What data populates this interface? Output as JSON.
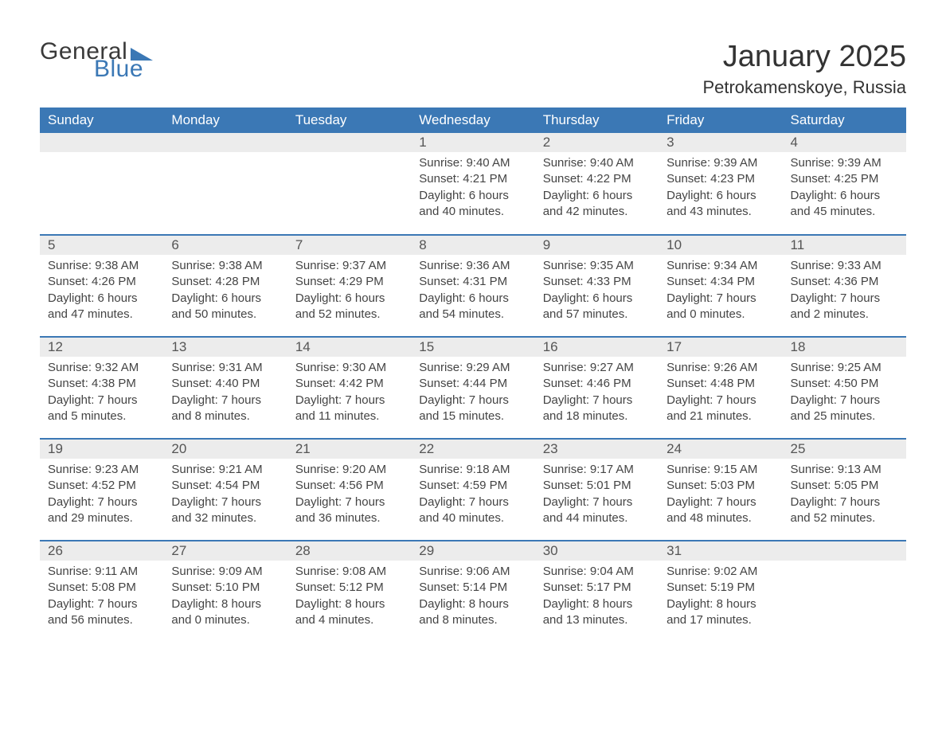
{
  "logo": {
    "text1": "General",
    "text2": "Blue",
    "triangle_color": "#3b78b5"
  },
  "title": "January 2025",
  "location": "Petrokamenskoye, Russia",
  "colors": {
    "header_bg": "#3b78b5",
    "header_text": "#ffffff",
    "daynum_bg": "#ECECEC",
    "body_text": "#444444",
    "rule": "#3b78b5",
    "page_bg": "#ffffff"
  },
  "typography": {
    "month_title_fontsize": 38,
    "location_fontsize": 22,
    "header_fontsize": 17,
    "daynum_fontsize": 17,
    "body_fontsize": 15
  },
  "days_of_week": [
    "Sunday",
    "Monday",
    "Tuesday",
    "Wednesday",
    "Thursday",
    "Friday",
    "Saturday"
  ],
  "weeks": [
    [
      null,
      null,
      null,
      {
        "n": "1",
        "sunrise": "9:40 AM",
        "sunset": "4:21 PM",
        "dl1": "Daylight: 6 hours",
        "dl2": "and 40 minutes."
      },
      {
        "n": "2",
        "sunrise": "9:40 AM",
        "sunset": "4:22 PM",
        "dl1": "Daylight: 6 hours",
        "dl2": "and 42 minutes."
      },
      {
        "n": "3",
        "sunrise": "9:39 AM",
        "sunset": "4:23 PM",
        "dl1": "Daylight: 6 hours",
        "dl2": "and 43 minutes."
      },
      {
        "n": "4",
        "sunrise": "9:39 AM",
        "sunset": "4:25 PM",
        "dl1": "Daylight: 6 hours",
        "dl2": "and 45 minutes."
      }
    ],
    [
      {
        "n": "5",
        "sunrise": "9:38 AM",
        "sunset": "4:26 PM",
        "dl1": "Daylight: 6 hours",
        "dl2": "and 47 minutes."
      },
      {
        "n": "6",
        "sunrise": "9:38 AM",
        "sunset": "4:28 PM",
        "dl1": "Daylight: 6 hours",
        "dl2": "and 50 minutes."
      },
      {
        "n": "7",
        "sunrise": "9:37 AM",
        "sunset": "4:29 PM",
        "dl1": "Daylight: 6 hours",
        "dl2": "and 52 minutes."
      },
      {
        "n": "8",
        "sunrise": "9:36 AM",
        "sunset": "4:31 PM",
        "dl1": "Daylight: 6 hours",
        "dl2": "and 54 minutes."
      },
      {
        "n": "9",
        "sunrise": "9:35 AM",
        "sunset": "4:33 PM",
        "dl1": "Daylight: 6 hours",
        "dl2": "and 57 minutes."
      },
      {
        "n": "10",
        "sunrise": "9:34 AM",
        "sunset": "4:34 PM",
        "dl1": "Daylight: 7 hours",
        "dl2": "and 0 minutes."
      },
      {
        "n": "11",
        "sunrise": "9:33 AM",
        "sunset": "4:36 PM",
        "dl1": "Daylight: 7 hours",
        "dl2": "and 2 minutes."
      }
    ],
    [
      {
        "n": "12",
        "sunrise": "9:32 AM",
        "sunset": "4:38 PM",
        "dl1": "Daylight: 7 hours",
        "dl2": "and 5 minutes."
      },
      {
        "n": "13",
        "sunrise": "9:31 AM",
        "sunset": "4:40 PM",
        "dl1": "Daylight: 7 hours",
        "dl2": "and 8 minutes."
      },
      {
        "n": "14",
        "sunrise": "9:30 AM",
        "sunset": "4:42 PM",
        "dl1": "Daylight: 7 hours",
        "dl2": "and 11 minutes."
      },
      {
        "n": "15",
        "sunrise": "9:29 AM",
        "sunset": "4:44 PM",
        "dl1": "Daylight: 7 hours",
        "dl2": "and 15 minutes."
      },
      {
        "n": "16",
        "sunrise": "9:27 AM",
        "sunset": "4:46 PM",
        "dl1": "Daylight: 7 hours",
        "dl2": "and 18 minutes."
      },
      {
        "n": "17",
        "sunrise": "9:26 AM",
        "sunset": "4:48 PM",
        "dl1": "Daylight: 7 hours",
        "dl2": "and 21 minutes."
      },
      {
        "n": "18",
        "sunrise": "9:25 AM",
        "sunset": "4:50 PM",
        "dl1": "Daylight: 7 hours",
        "dl2": "and 25 minutes."
      }
    ],
    [
      {
        "n": "19",
        "sunrise": "9:23 AM",
        "sunset": "4:52 PM",
        "dl1": "Daylight: 7 hours",
        "dl2": "and 29 minutes."
      },
      {
        "n": "20",
        "sunrise": "9:21 AM",
        "sunset": "4:54 PM",
        "dl1": "Daylight: 7 hours",
        "dl2": "and 32 minutes."
      },
      {
        "n": "21",
        "sunrise": "9:20 AM",
        "sunset": "4:56 PM",
        "dl1": "Daylight: 7 hours",
        "dl2": "and 36 minutes."
      },
      {
        "n": "22",
        "sunrise": "9:18 AM",
        "sunset": "4:59 PM",
        "dl1": "Daylight: 7 hours",
        "dl2": "and 40 minutes."
      },
      {
        "n": "23",
        "sunrise": "9:17 AM",
        "sunset": "5:01 PM",
        "dl1": "Daylight: 7 hours",
        "dl2": "and 44 minutes."
      },
      {
        "n": "24",
        "sunrise": "9:15 AM",
        "sunset": "5:03 PM",
        "dl1": "Daylight: 7 hours",
        "dl2": "and 48 minutes."
      },
      {
        "n": "25",
        "sunrise": "9:13 AM",
        "sunset": "5:05 PM",
        "dl1": "Daylight: 7 hours",
        "dl2": "and 52 minutes."
      }
    ],
    [
      {
        "n": "26",
        "sunrise": "9:11 AM",
        "sunset": "5:08 PM",
        "dl1": "Daylight: 7 hours",
        "dl2": "and 56 minutes."
      },
      {
        "n": "27",
        "sunrise": "9:09 AM",
        "sunset": "5:10 PM",
        "dl1": "Daylight: 8 hours",
        "dl2": "and 0 minutes."
      },
      {
        "n": "28",
        "sunrise": "9:08 AM",
        "sunset": "5:12 PM",
        "dl1": "Daylight: 8 hours",
        "dl2": "and 4 minutes."
      },
      {
        "n": "29",
        "sunrise": "9:06 AM",
        "sunset": "5:14 PM",
        "dl1": "Daylight: 8 hours",
        "dl2": "and 8 minutes."
      },
      {
        "n": "30",
        "sunrise": "9:04 AM",
        "sunset": "5:17 PM",
        "dl1": "Daylight: 8 hours",
        "dl2": "and 13 minutes."
      },
      {
        "n": "31",
        "sunrise": "9:02 AM",
        "sunset": "5:19 PM",
        "dl1": "Daylight: 8 hours",
        "dl2": "and 17 minutes."
      },
      null
    ]
  ],
  "labels": {
    "sunrise_prefix": "Sunrise: ",
    "sunset_prefix": "Sunset: "
  }
}
